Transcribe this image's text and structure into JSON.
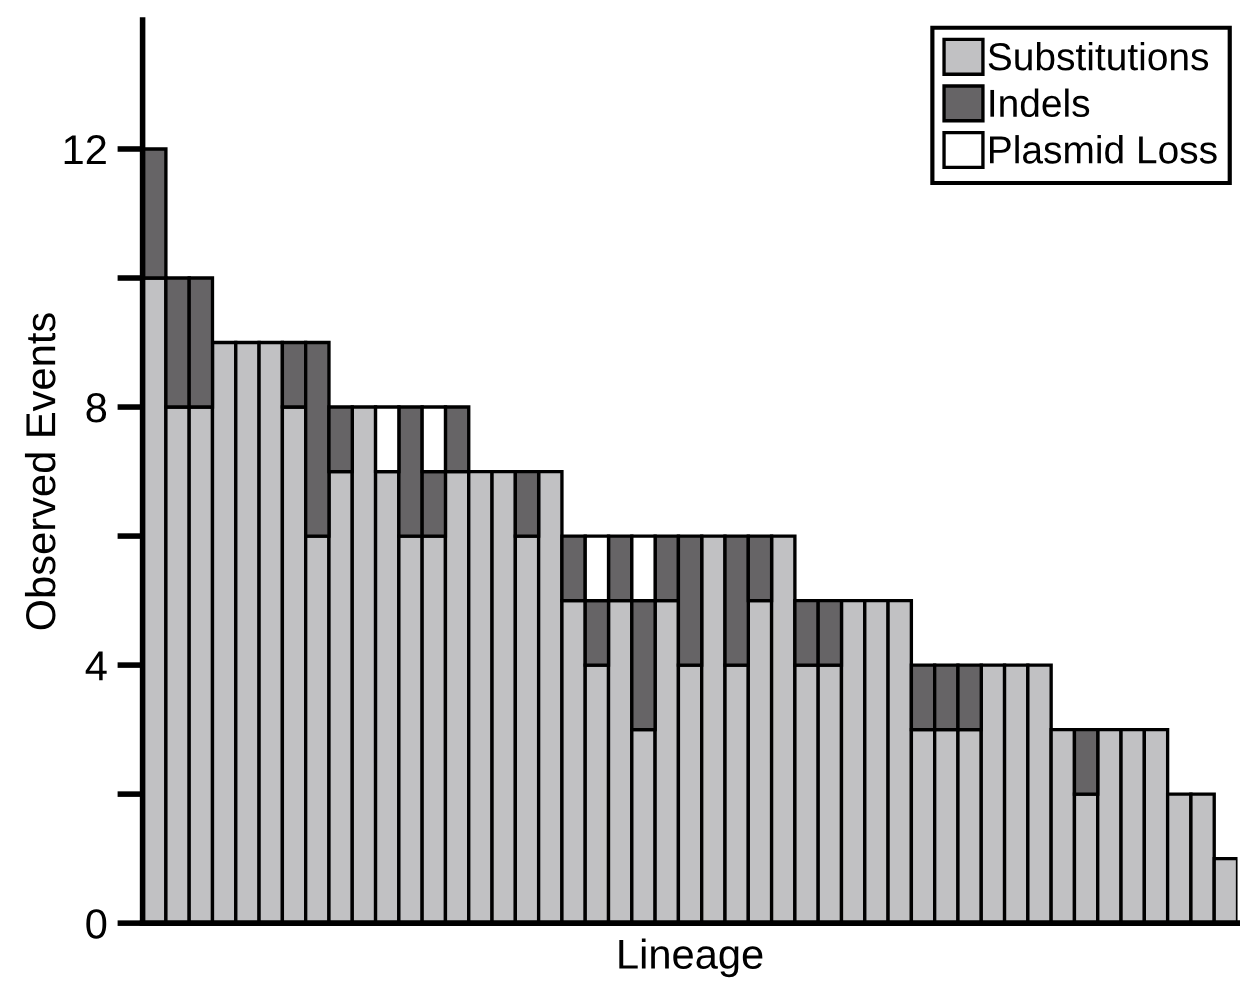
{
  "chart_data": {
    "type": "bar",
    "stacked": true,
    "xlabel": "Lineage",
    "ylabel": "Observed Events",
    "categories": [
      null,
      null,
      null,
      null,
      null,
      null,
      null,
      null,
      null,
      null,
      null,
      null,
      null,
      null,
      null,
      null,
      null,
      null,
      null,
      null,
      null,
      null,
      null,
      null,
      null,
      null,
      null,
      null,
      null,
      null,
      null,
      null,
      null,
      null,
      null,
      null,
      null,
      null,
      null,
      null,
      null,
      null,
      null,
      null,
      null,
      null,
      null
    ],
    "series": [
      {
        "name": "Substitutions",
        "color": "#c1c1c3",
        "values": [
          10,
          8,
          8,
          9,
          9,
          9,
          8,
          6,
          7,
          8,
          7,
          6,
          6,
          7,
          7,
          7,
          6,
          7,
          5,
          4,
          5,
          3,
          5,
          4,
          6,
          4,
          5,
          6,
          4,
          4,
          5,
          5,
          5,
          3,
          3,
          3,
          4,
          4,
          4,
          3,
          2,
          3,
          3,
          3,
          2,
          2,
          1
        ]
      },
      {
        "name": "Indels",
        "color": "#666466",
        "values": [
          2,
          2,
          2,
          0,
          0,
          0,
          1,
          3,
          1,
          0,
          0,
          2,
          1,
          1,
          0,
          0,
          1,
          0,
          1,
          1,
          1,
          2,
          1,
          2,
          0,
          2,
          1,
          0,
          1,
          1,
          0,
          0,
          0,
          1,
          1,
          1,
          0,
          0,
          0,
          0,
          1,
          0,
          0,
          0,
          0,
          0,
          0
        ]
      },
      {
        "name": "Plasmid Loss",
        "color": "#ffffff",
        "values": [
          0,
          0,
          0,
          0,
          0,
          0,
          0,
          0,
          0,
          0,
          1,
          0,
          1,
          0,
          0,
          0,
          0,
          0,
          0,
          1,
          0,
          1,
          0,
          0,
          0,
          0,
          0,
          0,
          0,
          0,
          0,
          0,
          0,
          0,
          0,
          0,
          0,
          0,
          0,
          0,
          0,
          0,
          0,
          0,
          0,
          0,
          0
        ]
      }
    ],
    "ylim": [
      0,
      14
    ],
    "yticks": [
      0,
      {
        "value": 2,
        "label": null
      },
      4,
      {
        "value": 6,
        "label": null
      },
      8,
      {
        "value": 10,
        "label": null
      },
      12
    ],
    "grid": false,
    "legend": "top right"
  }
}
